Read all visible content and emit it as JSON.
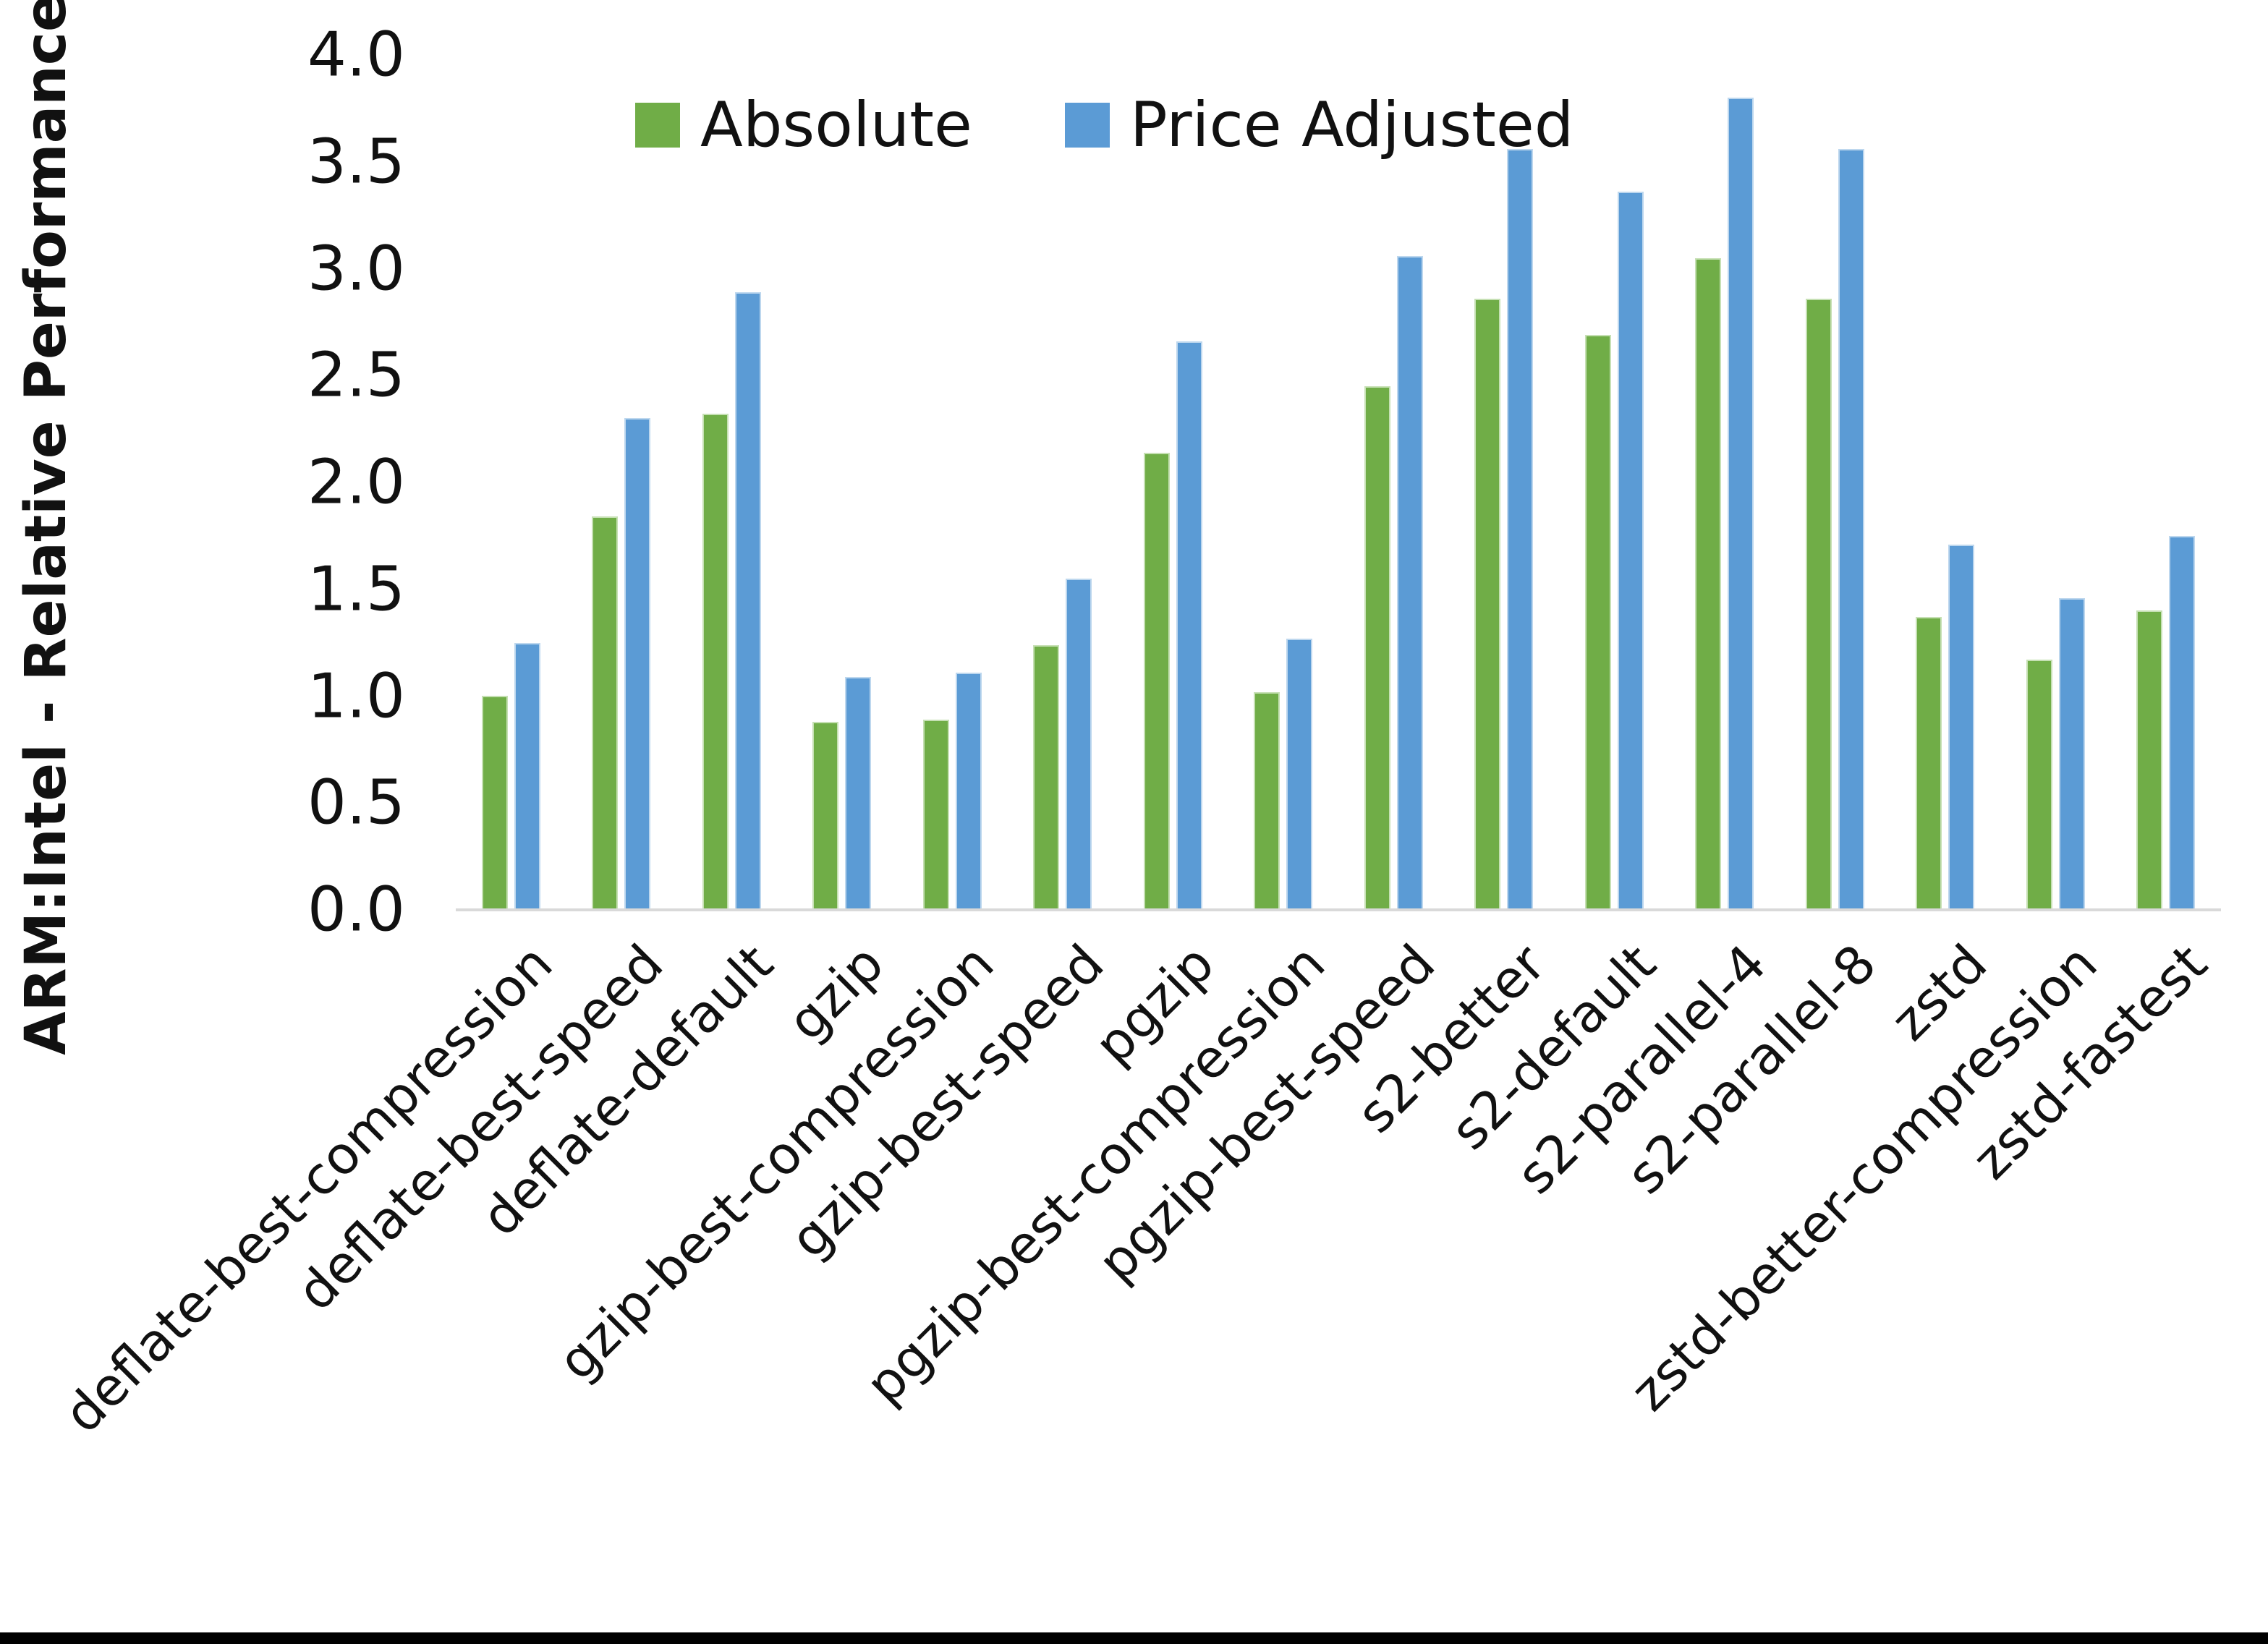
{
  "chart_data": {
    "type": "bar",
    "title": "",
    "ylabel": "ARM:Intel - Relative Performance",
    "xlabel": "",
    "ylim": [
      0.0,
      4.0
    ],
    "ytick_labels": [
      "0.0",
      "0.5",
      "1.0",
      "1.5",
      "2.0",
      "2.5",
      "3.0",
      "3.5",
      "4.0"
    ],
    "grid": "off",
    "legend_position": "top-center",
    "categories": [
      "deflate-best-compression",
      "deflate-best-speed",
      "deflate-default",
      "gzip",
      "gzip-best-compression",
      "gzip-best-speed",
      "pgzip",
      "pgzip-best-compression",
      "pgzip-best-speed",
      "s2-better",
      "s2-default",
      "s2-parallel-4",
      "s2-parallel-8",
      "zstd",
      "zstd-better-compression",
      "zstd-fastest"
    ],
    "series": [
      {
        "name": "Absolute",
        "color": "#70AD47",
        "values": [
          1.0,
          1.84,
          2.32,
          0.88,
          0.89,
          1.24,
          2.14,
          1.02,
          2.45,
          2.86,
          2.69,
          3.05,
          2.86,
          1.37,
          1.17,
          1.4
        ]
      },
      {
        "name": "Price Adjusted",
        "color": "#5B9BD5",
        "values": [
          1.25,
          2.3,
          2.89,
          1.09,
          1.11,
          1.55,
          2.66,
          1.27,
          3.06,
          3.56,
          3.36,
          3.8,
          3.56,
          1.71,
          1.46,
          1.75
        ]
      }
    ]
  },
  "legend": {
    "absolute_label": "Absolute",
    "price_adjusted_label": "Price Adjusted"
  },
  "colors": {
    "absolute": "#70AD47",
    "price_adjusted": "#5B9BD5",
    "axis_line": "#d9d9d9",
    "text": "#111111"
  }
}
